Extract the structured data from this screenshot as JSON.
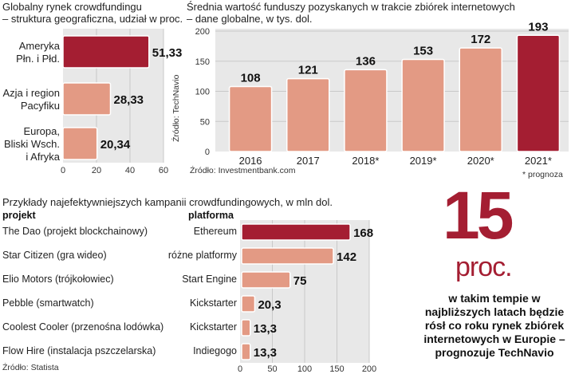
{
  "colors": {
    "panel": "#e8e8e8",
    "bar_light": "#e39a84",
    "bar_dark": "#a41e32",
    "grid": "#c9c9c9",
    "accent": "#a41e32"
  },
  "chart_data": [
    {
      "type": "bar",
      "orientation": "horizontal",
      "title": "Globalny rynek crowdfundingu",
      "subtitle": "– struktura geograficzna, udział w proc.",
      "categories": [
        "Ameryka\nPłn. i Płd.",
        "Azja i region\nPacyfiku",
        "Europa,\nBliski Wsch.\ni Afryka"
      ],
      "values": [
        51.33,
        28.33,
        20.34
      ],
      "value_labels": [
        "51,33",
        "28,33",
        "20,34"
      ],
      "xlim": [
        0,
        60
      ],
      "xticks": [
        "0",
        "20",
        "40",
        "60"
      ],
      "source": "Źródło: TechNavio"
    },
    {
      "type": "bar",
      "title": "Średnia wartość funduszy pozyskanych w trakcie zbiórek internetowych",
      "subtitle": "– dane globalne, w tys. dol.",
      "categories": [
        "2016",
        "2017",
        "2018*",
        "2019*",
        "2020*",
        "2021*"
      ],
      "values": [
        108,
        121,
        136,
        153,
        172,
        193
      ],
      "ylim": [
        0,
        200
      ],
      "yticks": [
        "0",
        "50",
        "100",
        "150",
        "200"
      ],
      "source": "Źródło: Investmentbank.com",
      "footnote": "* prognoza"
    },
    {
      "type": "bar",
      "orientation": "horizontal",
      "title": "Przykłady najefektywniejszych kampanii crowdfundingowych, w mln dol.",
      "column_headers": {
        "project": "projekt",
        "platform": "platforma"
      },
      "rows": [
        {
          "project": "The Dao (projekt blockchainowy)",
          "platform": "Ethereum",
          "value": 168,
          "label": "168"
        },
        {
          "project": "Star Citizen (gra wideo)",
          "platform": "różne platformy",
          "value": 142,
          "label": "142"
        },
        {
          "project": "Elio Motors (trójkołowiec)",
          "platform": "Start Engine",
          "value": 75,
          "label": "75"
        },
        {
          "project": "Pebble (smartwatch)",
          "platform": "Kickstarter",
          "value": 20.3,
          "label": "20,3"
        },
        {
          "project": "Coolest Cooler (przenośna lodówka)",
          "platform": "Kickstarter",
          "value": 13.3,
          "label": "13,3"
        },
        {
          "project": "Flow Hire (instalacja pszczelarska)",
          "platform": "Indiegogo",
          "value": 13.3,
          "label": "13,3"
        }
      ],
      "xlim": [
        0,
        200
      ],
      "xticks": [
        "0",
        "50",
        "100",
        "150",
        "200"
      ],
      "source": "Źródło: Statista"
    }
  ],
  "callout": {
    "number": "15",
    "unit": "proc.",
    "text": "w takim tempie w najbliższych latach będzie rósł co roku rynek zbiórek internetowych w Europie – prognozuje TechNavio"
  }
}
